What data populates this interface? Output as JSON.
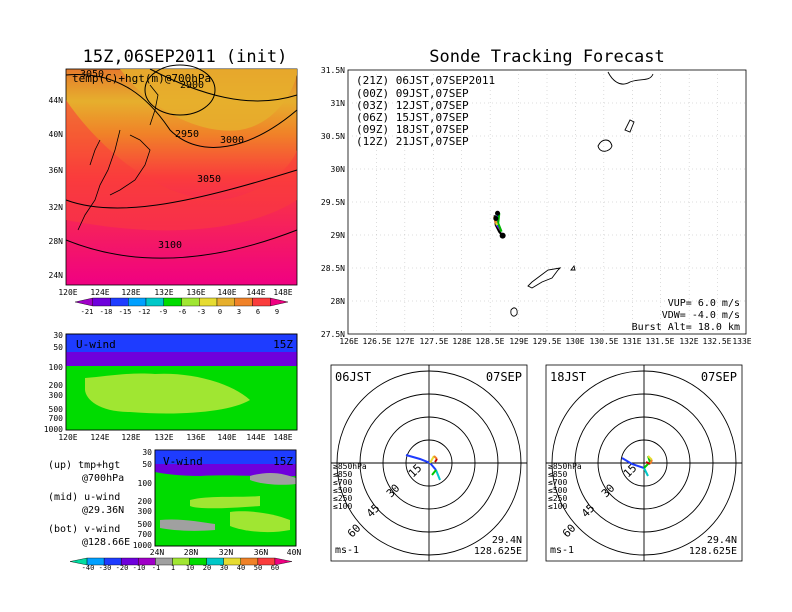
{
  "left_title": "15Z,06SEP2011 (init)",
  "right_title": "Sonde Tracking Forecast",
  "upper_map": {
    "label": "temp(C)+hgt(m)@700hPa",
    "lat_labels": [
      "44N",
      "40N",
      "36N",
      "32N",
      "28N",
      "24N"
    ],
    "lon_labels": [
      "120E",
      "124E",
      "128E",
      "132E",
      "136E",
      "140E",
      "144E",
      "148E"
    ],
    "contour_labels": [
      "3050",
      "2900",
      "2950",
      "3000",
      "3050",
      "3100"
    ]
  },
  "temp_colorbar": {
    "labels": [
      "-21",
      "-18",
      "-15",
      "-12",
      "-9",
      "-6",
      "-3",
      "0",
      "3",
      "6",
      "9"
    ]
  },
  "u_wind": {
    "label": "U-wind",
    "time": "15Z",
    "p_labels": [
      "30",
      "50",
      "100",
      "200",
      "300",
      "500",
      "700",
      "1000"
    ],
    "lon_labels": [
      "120E",
      "124E",
      "128E",
      "132E",
      "136E",
      "140E",
      "144E",
      "148E"
    ]
  },
  "v_wind": {
    "label": "V-wind",
    "time": "15Z",
    "p_labels": [
      "30",
      "50",
      "100",
      "200",
      "300",
      "500",
      "700",
      "1000"
    ],
    "lat_labels": [
      "24N",
      "28N",
      "32N",
      "36N",
      "40N"
    ]
  },
  "wind_colorbar": {
    "labels": [
      "-40",
      "-30",
      "-20",
      "-10",
      "-1",
      "1",
      "10",
      "20",
      "30",
      "40",
      "50",
      "60"
    ]
  },
  "legend_notes": {
    "up1": "(up) tmp+hgt",
    "up2": "@700hPa",
    "mid1": "(mid) u-wind",
    "mid2": "@29.36N",
    "bot1": "(bot) v-wind",
    "bot2": "@128.66E"
  },
  "track_map": {
    "lat_labels": [
      "31.5N",
      "31N",
      "30.5N",
      "30N",
      "29.5N",
      "29N",
      "28.5N",
      "28N",
      "27.5N"
    ],
    "lon_labels": [
      "126E",
      "126.5E",
      "127E",
      "127.5E",
      "128E",
      "128.5E",
      "129E",
      "129.5E",
      "130E",
      "130.5E",
      "131E",
      "131.5E",
      "132E",
      "132.5E",
      "133E"
    ],
    "legend": [
      {
        "text": "(21Z) 06JST,07SEP2011",
        "color": "#000000"
      },
      {
        "text": "(00Z) 09JST,07SEP",
        "color": "#a000c8"
      },
      {
        "text": "(03Z) 12JST,07SEP",
        "color": "#1e3cff"
      },
      {
        "text": "(06Z) 15JST,07SEP",
        "color": "#00b400"
      },
      {
        "text": "(09Z) 18JST,07SEP",
        "color": "#e6dc32"
      },
      {
        "text": "(12Z) 21JST,07SEP",
        "color": "#f08228"
      }
    ],
    "vup": "VUP= 6.0 m/s",
    "vdw": "VDW= -4.0 m/s",
    "burst": "Burst Alt= 18.0 km"
  },
  "polar_left": {
    "time": "06JST",
    "date": "07SEP",
    "speed_labels": [
      "15",
      "30",
      "45",
      "60"
    ],
    "levels": [
      "≥850hPa",
      "≤850",
      "≤700",
      "≤500",
      "≤250",
      "≤100"
    ],
    "units": "ms-1",
    "lat": "29.4N",
    "lon": "128.625E"
  },
  "polar_right": {
    "time": "18JST",
    "date": "07SEP",
    "speed_labels": [
      "15",
      "30",
      "45",
      "60"
    ],
    "levels": [
      "≥850hPa",
      "≤850",
      "≤700",
      "≤500",
      "≤250",
      "≤100"
    ],
    "units": "ms-1",
    "lat": "29.4N",
    "lon": "128.625E"
  },
  "level_colors": [
    "#c80000",
    "#f08228",
    "#e6dc32",
    "#00c800",
    "#00c8c8",
    "#1e3cff"
  ],
  "temp_colors": [
    "#a000c8",
    "#6e00dc",
    "#1e3cff",
    "#00a0ff",
    "#00c8c8",
    "#00dc00",
    "#a0e632",
    "#e6dc32",
    "#e6af2d",
    "#f08228",
    "#fa3c3c",
    "#f00082"
  ],
  "wind_colors": [
    "#00dca0",
    "#00a0ff",
    "#1e3cff",
    "#6e00dc",
    "#a000c8",
    "#a0a0a0",
    "#a0e632",
    "#00dc00",
    "#00c8c8",
    "#e6dc32",
    "#f08228",
    "#fa3c3c",
    "#f00082"
  ]
}
